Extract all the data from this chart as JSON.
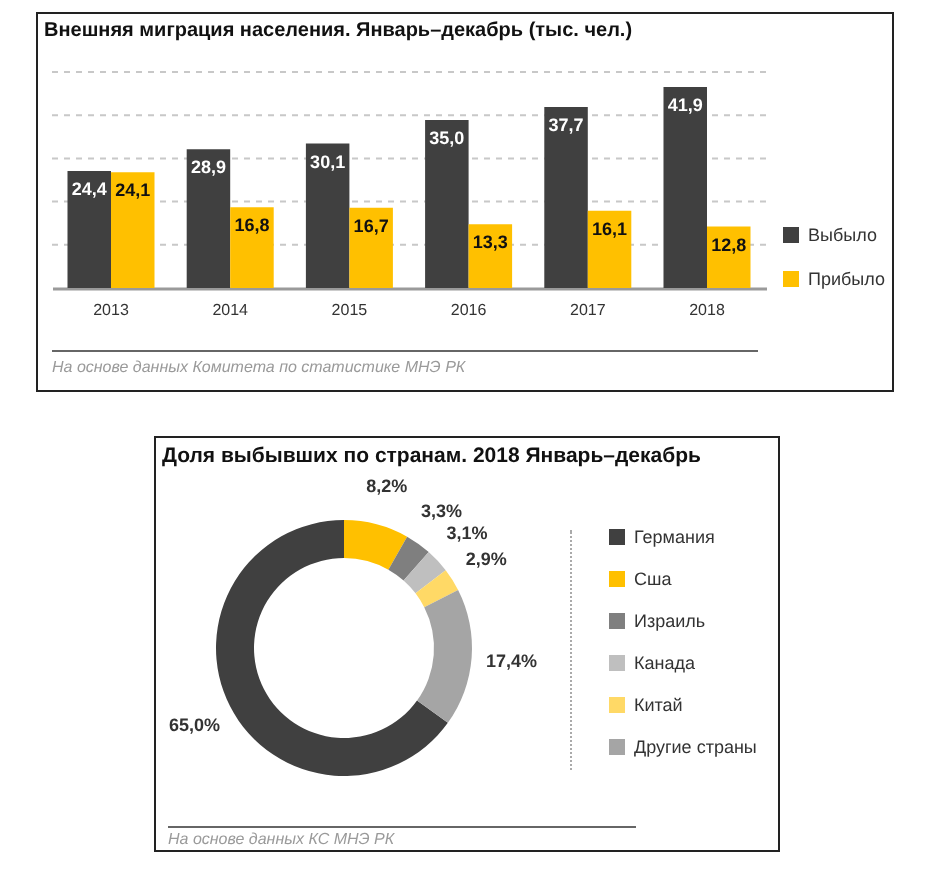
{
  "chart_data": [
    {
      "type": "bar",
      "title": "Внешняя миграция населения. Январь–декабрь (тыс. чел.)",
      "categories": [
        "2013",
        "2014",
        "2015",
        "2016",
        "2017",
        "2018"
      ],
      "series": [
        {
          "name": "Выбыло",
          "color": "#404040",
          "values": [
            24.4,
            28.9,
            30.1,
            35.0,
            37.7,
            41.9
          ],
          "value_labels": [
            "24,4",
            "28,9",
            "30,1",
            "35,0",
            "37,7",
            "41,9"
          ]
        },
        {
          "name": "Прибыло",
          "color": "#ffc000",
          "values": [
            24.1,
            16.8,
            16.7,
            13.3,
            16.1,
            12.8
          ],
          "value_labels": [
            "24,1",
            "16,8",
            "16,7",
            "13,3",
            "16,1",
            "12,8"
          ]
        }
      ],
      "ylim": [
        0,
        45
      ],
      "yticks": [
        {
          "value": 9,
          "label": null
        },
        {
          "value": 18,
          "label": null
        },
        {
          "value": 27,
          "label": null
        },
        {
          "value": 36,
          "label": null
        },
        {
          "value": 45,
          "label": null
        }
      ],
      "grid": "y",
      "tick_labels": "x",
      "legend": "right",
      "annotations": [
        "На основе данных Комитета по статистике МНЭ РК"
      ]
    },
    {
      "type": "donut",
      "title": "Доля выбывших по странам. 2018 Январь–декабрь",
      "categories": [
        "Германия",
        "Сша",
        "Израиль",
        "Канада",
        "Китай",
        "Другие страны"
      ],
      "values": [
        65.0,
        8.2,
        3.3,
        3.1,
        2.9,
        17.4
      ],
      "value_labels": [
        "65,0%",
        "8,2%",
        "3,3%",
        "3,1%",
        "2,9%",
        "17,4%"
      ],
      "colors": [
        "#404040",
        "#ffc000",
        "#7f7f7f",
        "#bfbfbf",
        "#ffd966",
        "#a5a5a5"
      ],
      "legend": "right",
      "annotations": [
        "На основе данных КС МНЭ РК"
      ]
    }
  ]
}
